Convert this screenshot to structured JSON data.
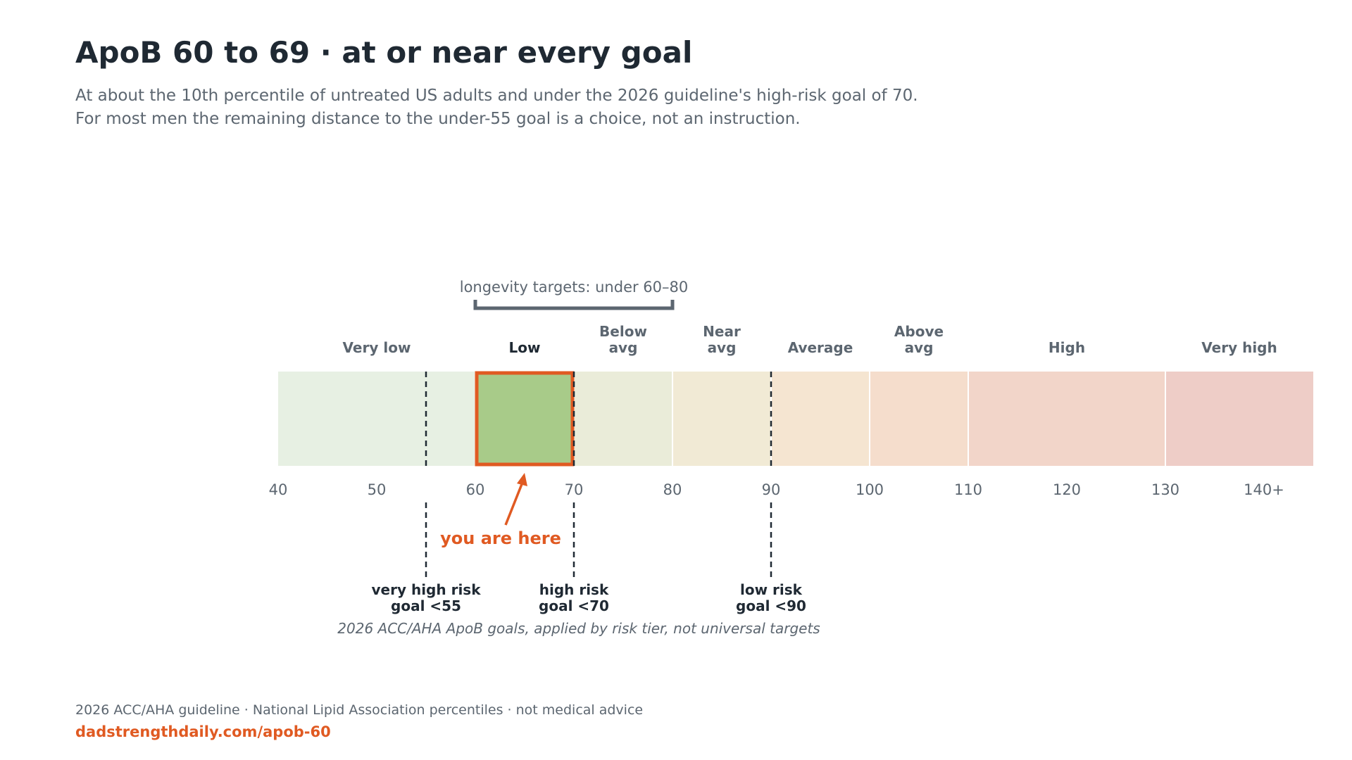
{
  "header": {
    "title": "ApoB 60 to 69 · at or near every goal",
    "subtitle_lines": [
      "At about the 10th percentile of untreated US adults and under the 2026 guideline's high-risk goal of 70.",
      "For most men the remaining distance to the under-55 goal is a choice, not an instruction."
    ]
  },
  "chart_data": {
    "type": "bar",
    "orientation": "horizontal-range",
    "xlim": [
      40,
      145
    ],
    "ticks": [
      {
        "value": 40,
        "label": "40"
      },
      {
        "value": 50,
        "label": "50"
      },
      {
        "value": 60,
        "label": "60"
      },
      {
        "value": 70,
        "label": "70"
      },
      {
        "value": 80,
        "label": "80"
      },
      {
        "value": 90,
        "label": "90"
      },
      {
        "value": 100,
        "label": "100"
      },
      {
        "value": 110,
        "label": "110"
      },
      {
        "value": 120,
        "label": "120"
      },
      {
        "value": 130,
        "label": "130"
      },
      {
        "value": 140,
        "label": "140+"
      }
    ],
    "bands": [
      {
        "label": [
          "Very low"
        ],
        "start": 40,
        "end": 60,
        "color": "#e7f0e3"
      },
      {
        "label": [
          "Low"
        ],
        "start": 60,
        "end": 70,
        "color": "#a8cb89",
        "highlight": true
      },
      {
        "label": [
          "Below",
          "avg"
        ],
        "start": 70,
        "end": 80,
        "color": "#eaecd9"
      },
      {
        "label": [
          "Near",
          "avg"
        ],
        "start": 80,
        "end": 90,
        "color": "#f1ead5"
      },
      {
        "label": [
          "Average"
        ],
        "start": 90,
        "end": 100,
        "color": "#f5e5d1"
      },
      {
        "label": [
          "Above",
          "avg"
        ],
        "start": 100,
        "end": 110,
        "color": "#f5ddcc"
      },
      {
        "label": [
          "High"
        ],
        "start": 110,
        "end": 130,
        "color": "#f2d5c9"
      },
      {
        "label": [
          "Very high"
        ],
        "start": 130,
        "end": 145,
        "color": "#eecdc7"
      }
    ],
    "highlight": {
      "start": 60,
      "end": 70,
      "color": "#e05a22",
      "pointer_value": 65,
      "annotation": "you are here"
    },
    "goal_lines": [
      {
        "value": 55,
        "label": [
          "very high risk",
          "goal <55"
        ]
      },
      {
        "value": 70,
        "label": [
          "high risk",
          "goal <70"
        ]
      },
      {
        "value": 90,
        "label": [
          "low risk",
          "goal <90"
        ]
      }
    ],
    "goals_caption": "2026 ACC/AHA ApoB goals, applied by risk tier, not universal targets",
    "bracket": {
      "start": 60,
      "end": 80,
      "label": "longevity targets: under 60–80"
    }
  },
  "colors": {
    "title": "#1f2933",
    "muted": "#5c6670",
    "accent": "#e05a22",
    "dark": "#1f2933",
    "bracket": "#5c6670"
  },
  "footer": {
    "source": "2026 ACC/AHA guideline · National Lipid Association percentiles · not medical advice",
    "url": "dadstrengthdaily.com/apob-60"
  }
}
